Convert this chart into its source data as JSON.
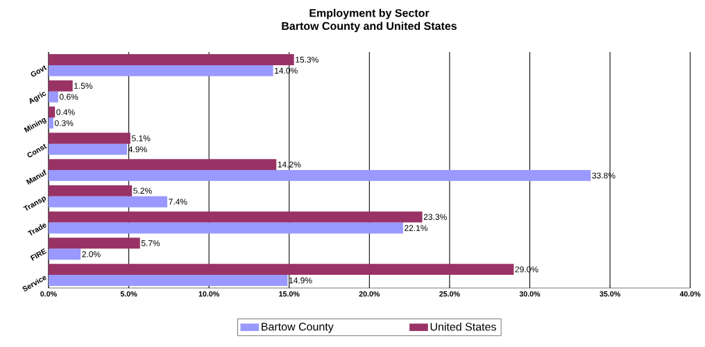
{
  "chart_data": {
    "type": "bar",
    "orientation": "horizontal",
    "title": "Employment by Sector",
    "subtitle": "Bartow County and United States",
    "categories": [
      "Govt",
      "Agric",
      "Mining",
      "Const",
      "Manuf",
      "Transp",
      "Trade",
      "FIRE",
      "Service"
    ],
    "series": [
      {
        "name": "Bartow County",
        "color": "#9999ff",
        "values": [
          14.0,
          0.6,
          0.3,
          4.9,
          33.8,
          7.4,
          22.1,
          2.0,
          14.9
        ],
        "value_labels": [
          "14.0%",
          "0.6%",
          "0.3%",
          "4.9%",
          "33.8%",
          "7.4%",
          "22.1%",
          "2.0%",
          "14.9%"
        ]
      },
      {
        "name": "United States",
        "color": "#993366",
        "values": [
          15.3,
          1.5,
          0.4,
          5.1,
          14.2,
          5.2,
          23.3,
          5.7,
          29.0
        ],
        "value_labels": [
          "15.3%",
          "1.5%",
          "0.4%",
          "5.1%",
          "14.2%",
          "5.2%",
          "23.3%",
          "5.7%",
          "29.0%"
        ]
      }
    ],
    "xlim": [
      0,
      40
    ],
    "xticks": [
      {
        "value": 0,
        "label": "0.0%"
      },
      {
        "value": 5,
        "label": "5.0%"
      },
      {
        "value": 10,
        "label": "10.0%"
      },
      {
        "value": 15,
        "label": "15.0%"
      },
      {
        "value": 20,
        "label": "20.0%"
      },
      {
        "value": 25,
        "label": "25.0%"
      },
      {
        "value": 30,
        "label": "30.0%"
      },
      {
        "value": 35,
        "label": "35.0%"
      },
      {
        "value": 40,
        "label": "40.0%"
      }
    ],
    "grid": "x",
    "legend": "bottom"
  }
}
